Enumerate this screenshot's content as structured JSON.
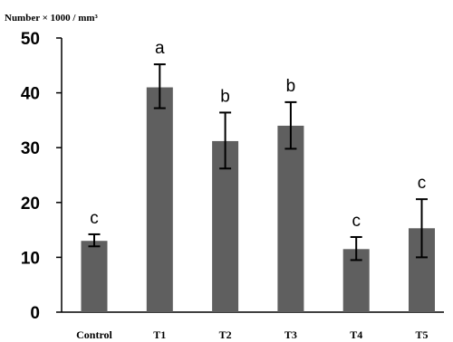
{
  "chart_data": {
    "type": "bar",
    "ylabel": "Number × 1000 / mm³",
    "xlabel": "",
    "title": "",
    "categories": [
      "Control",
      "T1",
      "T2",
      "T3",
      "T4",
      "T5"
    ],
    "values": [
      13,
      41,
      31.2,
      34,
      11.5,
      15.3
    ],
    "error_low": [
      12,
      37.2,
      26.2,
      29.8,
      9.5,
      10.0
    ],
    "error_high": [
      14.2,
      45.2,
      36.4,
      38.3,
      13.7,
      20.6
    ],
    "significance_letters": [
      "c",
      "a",
      "b",
      "b",
      "c",
      "c"
    ],
    "ylim": [
      0,
      50
    ],
    "yticks": [
      0,
      10,
      20,
      30,
      40,
      50
    ],
    "grid": false,
    "legend": "none",
    "bar_color": "#5f5f5f"
  }
}
